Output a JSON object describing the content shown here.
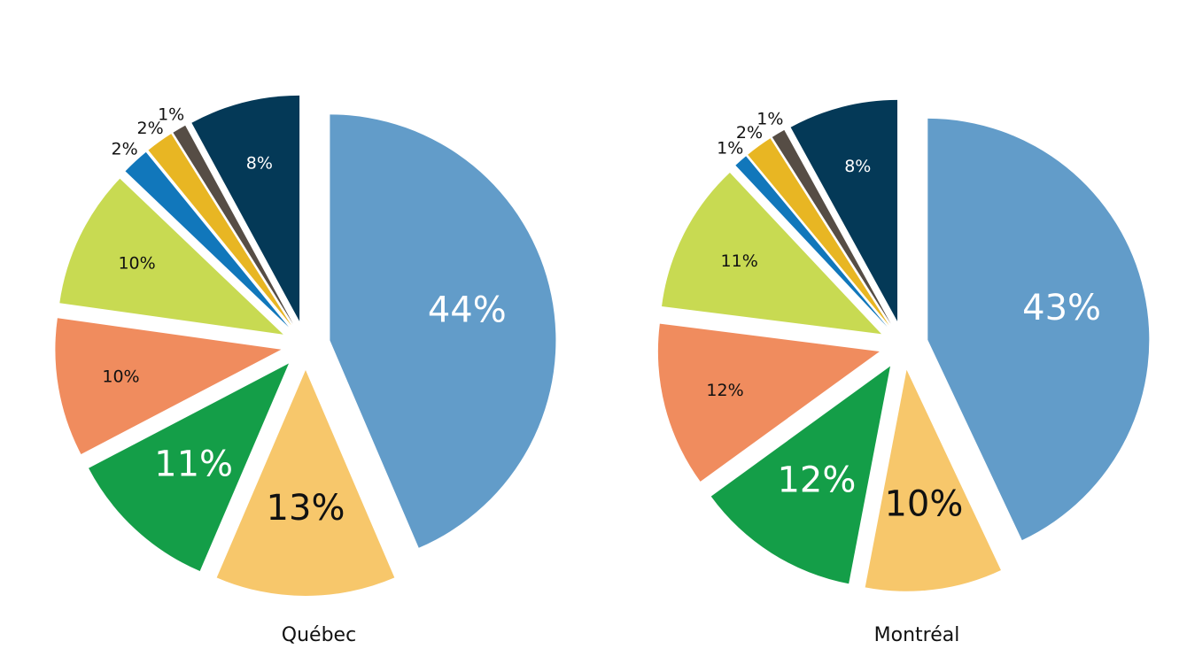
{
  "chart_data": [
    {
      "type": "pie",
      "title": "Québec",
      "values": [
        44,
        13,
        11,
        10,
        10,
        2,
        2,
        1,
        8
      ],
      "value_labels": [
        "44%",
        "13%",
        "11%",
        "10%",
        "10%",
        "2%",
        "2%",
        "1%",
        "8%"
      ],
      "colors": [
        "#629cc9",
        "#f7c76b",
        "#149e48",
        "#f08c5e",
        "#c8da52",
        "#1177bb",
        "#e8b623",
        "#564d45",
        "#043957"
      ]
    },
    {
      "type": "pie",
      "title": "Montréal",
      "values": [
        43,
        10,
        12,
        12,
        11,
        1,
        2,
        1,
        8
      ],
      "value_labels": [
        "43%",
        "10%",
        "12%",
        "12%",
        "11%",
        "1%",
        "2%",
        "1%",
        "8%"
      ],
      "colors": [
        "#629cc9",
        "#f7c76b",
        "#149e48",
        "#f08c5e",
        "#c8da52",
        "#1177bb",
        "#e8b623",
        "#564d45",
        "#043957"
      ]
    }
  ]
}
